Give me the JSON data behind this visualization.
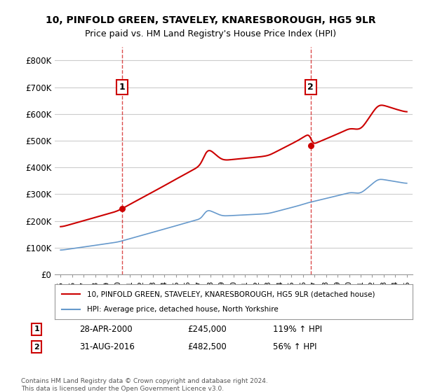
{
  "title": "10, PINFOLD GREEN, STAVELEY, KNARESBOROUGH, HG5 9LR",
  "subtitle": "Price paid vs. HM Land Registry's House Price Index (HPI)",
  "ylabel_ticks": [
    "£0",
    "£100K",
    "£200K",
    "£300K",
    "£400K",
    "£500K",
    "£600K",
    "£700K",
    "£800K"
  ],
  "ytick_values": [
    0,
    100000,
    200000,
    300000,
    400000,
    500000,
    600000,
    700000,
    800000
  ],
  "ylim": [
    0,
    850000
  ],
  "xlim_start": 1994.5,
  "xlim_end": 2025.5,
  "purchase1": {
    "date_label": "28-APR-2000",
    "price": 245000,
    "hpi_label": "119% ↑ HPI",
    "x": 2000.33,
    "marker_num": "1"
  },
  "purchase2": {
    "date_label": "31-AUG-2016",
    "price": 482500,
    "hpi_label": "56% ↑ HPI",
    "x": 2016.67,
    "marker_num": "2"
  },
  "line_color_property": "#cc0000",
  "line_color_hpi": "#6699cc",
  "background_color": "#ffffff",
  "grid_color": "#cccccc",
  "legend_label_property": "10, PINFOLD GREEN, STAVELEY, KNARESBOROUGH, HG5 9LR (detached house)",
  "legend_label_hpi": "HPI: Average price, detached house, North Yorkshire",
  "footnote": "Contains HM Land Registry data © Crown copyright and database right 2024.\nThis data is licensed under the Open Government Licence v3.0.",
  "xtick_years": [
    1995,
    1996,
    1997,
    1998,
    1999,
    2000,
    2001,
    2002,
    2003,
    2004,
    2005,
    2006,
    2007,
    2008,
    2009,
    2010,
    2011,
    2012,
    2013,
    2014,
    2015,
    2016,
    2017,
    2018,
    2019,
    2020,
    2021,
    2022,
    2023,
    2024,
    2025
  ]
}
